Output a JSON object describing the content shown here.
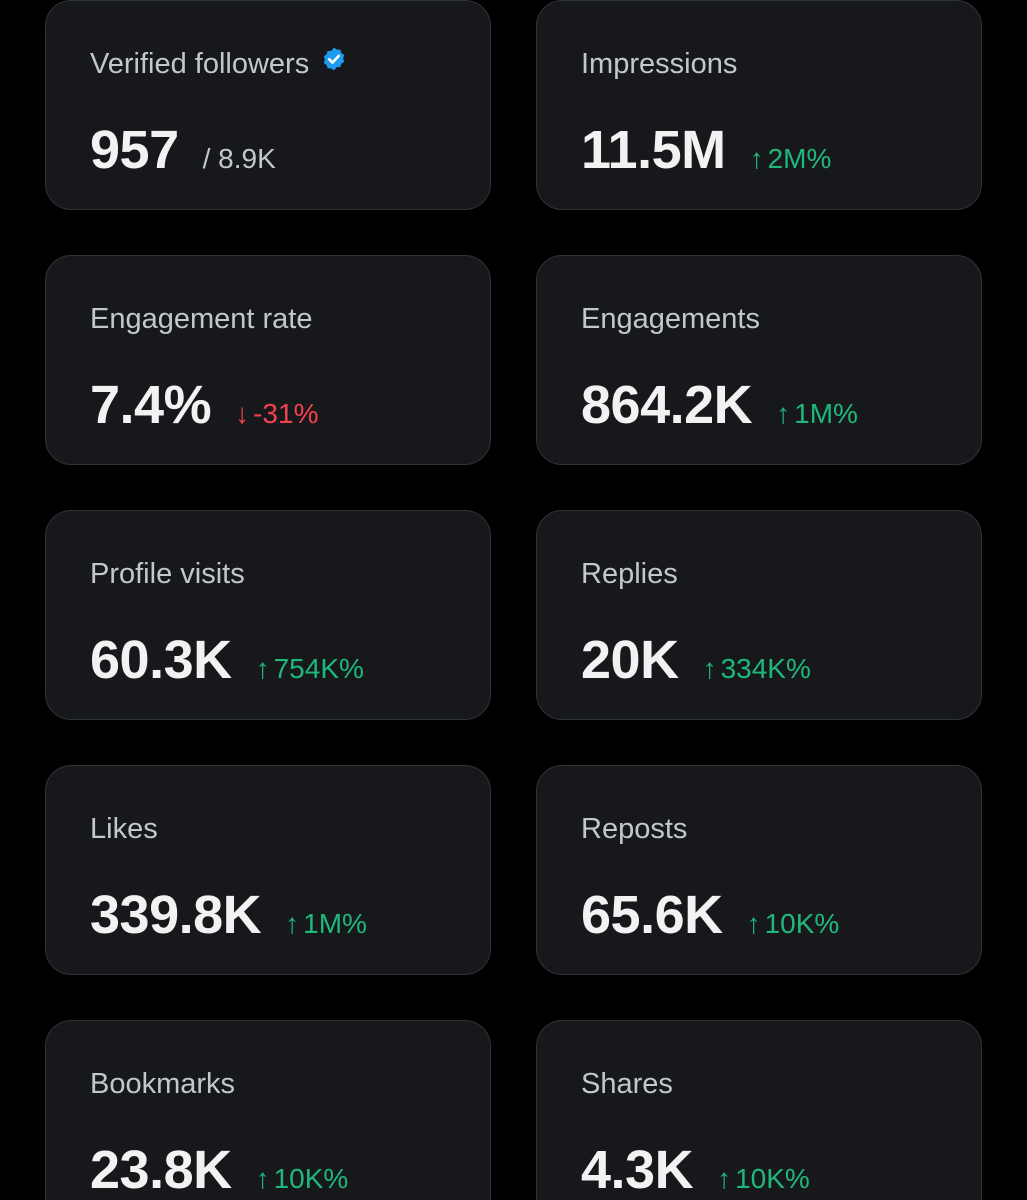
{
  "colors": {
    "positive": "#1fb87a",
    "negative": "#f3424d",
    "verified": "#1d9bf0"
  },
  "cards": [
    {
      "label": "Verified followers",
      "value": "957",
      "sub": "/ 8.9K",
      "verified_icon": "verified-badge-icon"
    },
    {
      "label": "Impressions",
      "value": "11.5M",
      "change": "2M%",
      "direction": "up"
    },
    {
      "label": "Engagement rate",
      "value": "7.4%",
      "change": "-31%",
      "direction": "down"
    },
    {
      "label": "Engagements",
      "value": "864.2K",
      "change": "1M%",
      "direction": "up"
    },
    {
      "label": "Profile visits",
      "value": "60.3K",
      "change": "754K%",
      "direction": "up"
    },
    {
      "label": "Replies",
      "value": "20K",
      "change": "334K%",
      "direction": "up"
    },
    {
      "label": "Likes",
      "value": "339.8K",
      "change": "1M%",
      "direction": "up"
    },
    {
      "label": "Reposts",
      "value": "65.6K",
      "change": "10K%",
      "direction": "up"
    },
    {
      "label": "Bookmarks",
      "value": "23.8K",
      "change": "10K%",
      "direction": "up"
    },
    {
      "label": "Shares",
      "value": "4.3K",
      "change": "10K%",
      "direction": "up"
    }
  ]
}
